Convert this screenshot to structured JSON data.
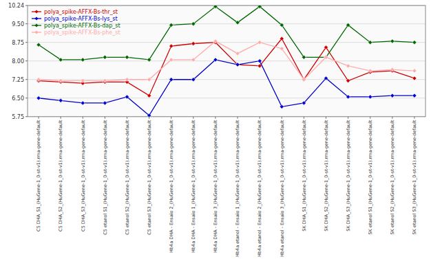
{
  "chart_data": {
    "type": "line",
    "categories": [
      "C5 DHA_S1_(HuGene-1_0-st-v1).rma-gene-default",
      "C5 DHA_S2_(HuGene-1_0-st-v1).rma-gene-default",
      "C5 DHA_S3_(HuGene-1_0-st-v1).rma-gene-default",
      "C5 etanol S1_(HuGene-1_0-st-v1).rma-gene-default",
      "C5 etanol S2_(HuGene-1_0-st-v1).rma-gene-default",
      "C5 etanol S3_(HuGene-1_0-st-v1).rma-gene-default",
      "Hb4a DHA - Ensaio 2_(HuGene-1_0-st-v1).rma-gene-default",
      "Hb4a DHA - Ensaio 1_(HuGene-1_0-st-v1).rma-gene-default",
      "Hb4a DHA - Ensaio 3_(HuGene-1_0-st-v1).rma-gene-default",
      "Hb4a etanol - Ensaio 1_(HuGene-1_0-st-v1).rma-gene-default",
      "Hb4a etanol - Ensaio 2_(HuGene-1_0-st-v1).rma-gene-default",
      "Hb4a etanol - Ensaio 3_(HuGene-1_0-st-v1).rma-gene-default",
      "SK DHA_S1_(HuGene-1_0-st-v1).rma-gene-default",
      "SK DHA_S2_(HuGene-1_0-st-v1).rma-gene-default",
      "SK DHA_S3_(HuGene-1_0-st-v1).rma-gene-default",
      "SK etanol S1_(HuGene-1_0-st-v1).rma-gene-default",
      "SK etanol S2_(HuGene-1_0-st-v1).rma-gene-default",
      "SK etanol S3_(HuGene-1_0-st-v1).rma-gene-default"
    ],
    "series": [
      {
        "name": "polya_spike-AFFX-Bs-thr_st",
        "color": "#cc0000",
        "values": [
          7.2,
          7.15,
          7.1,
          7.15,
          7.15,
          6.6,
          8.6,
          8.7,
          8.75,
          7.85,
          7.8,
          8.9,
          7.25,
          8.55,
          7.2,
          7.55,
          7.6,
          7.3
        ]
      },
      {
        "name": "polya_spike-AFFX-Bs-lys_st",
        "color": "#0000cc",
        "values": [
          6.5,
          6.4,
          6.3,
          6.3,
          6.55,
          5.8,
          7.25,
          7.25,
          8.05,
          7.85,
          8.0,
          6.15,
          6.3,
          7.3,
          6.55,
          6.55,
          6.6,
          6.6
        ]
      },
      {
        "name": "polya_spike-AFFX-Bs-dap_st",
        "color": "#006600",
        "values": [
          8.65,
          8.05,
          8.05,
          8.15,
          8.15,
          8.05,
          9.45,
          9.5,
          10.2,
          9.55,
          10.2,
          9.45,
          8.15,
          8.15,
          9.45,
          8.75,
          8.8,
          8.75
        ]
      },
      {
        "name": "polya_spike-AFFX-Bs-phe_st",
        "color": "#ffaaaa",
        "values": [
          7.25,
          7.2,
          7.2,
          7.2,
          7.25,
          7.25,
          8.05,
          8.05,
          8.8,
          8.3,
          8.75,
          8.5,
          7.25,
          8.15,
          7.8,
          7.6,
          7.65,
          7.6
        ]
      }
    ],
    "ylim": [
      5.75,
      10.24
    ],
    "yticks": [
      5.75,
      {
        "value": 6.5,
        "label": "6.50"
      },
      7.25,
      {
        "value": 8,
        "label": "8.00"
      },
      8.75,
      {
        "value": 9.5,
        "label": "9.50"
      },
      10.24
    ],
    "marker": "diamond",
    "grid": true,
    "legend": "upper left"
  }
}
